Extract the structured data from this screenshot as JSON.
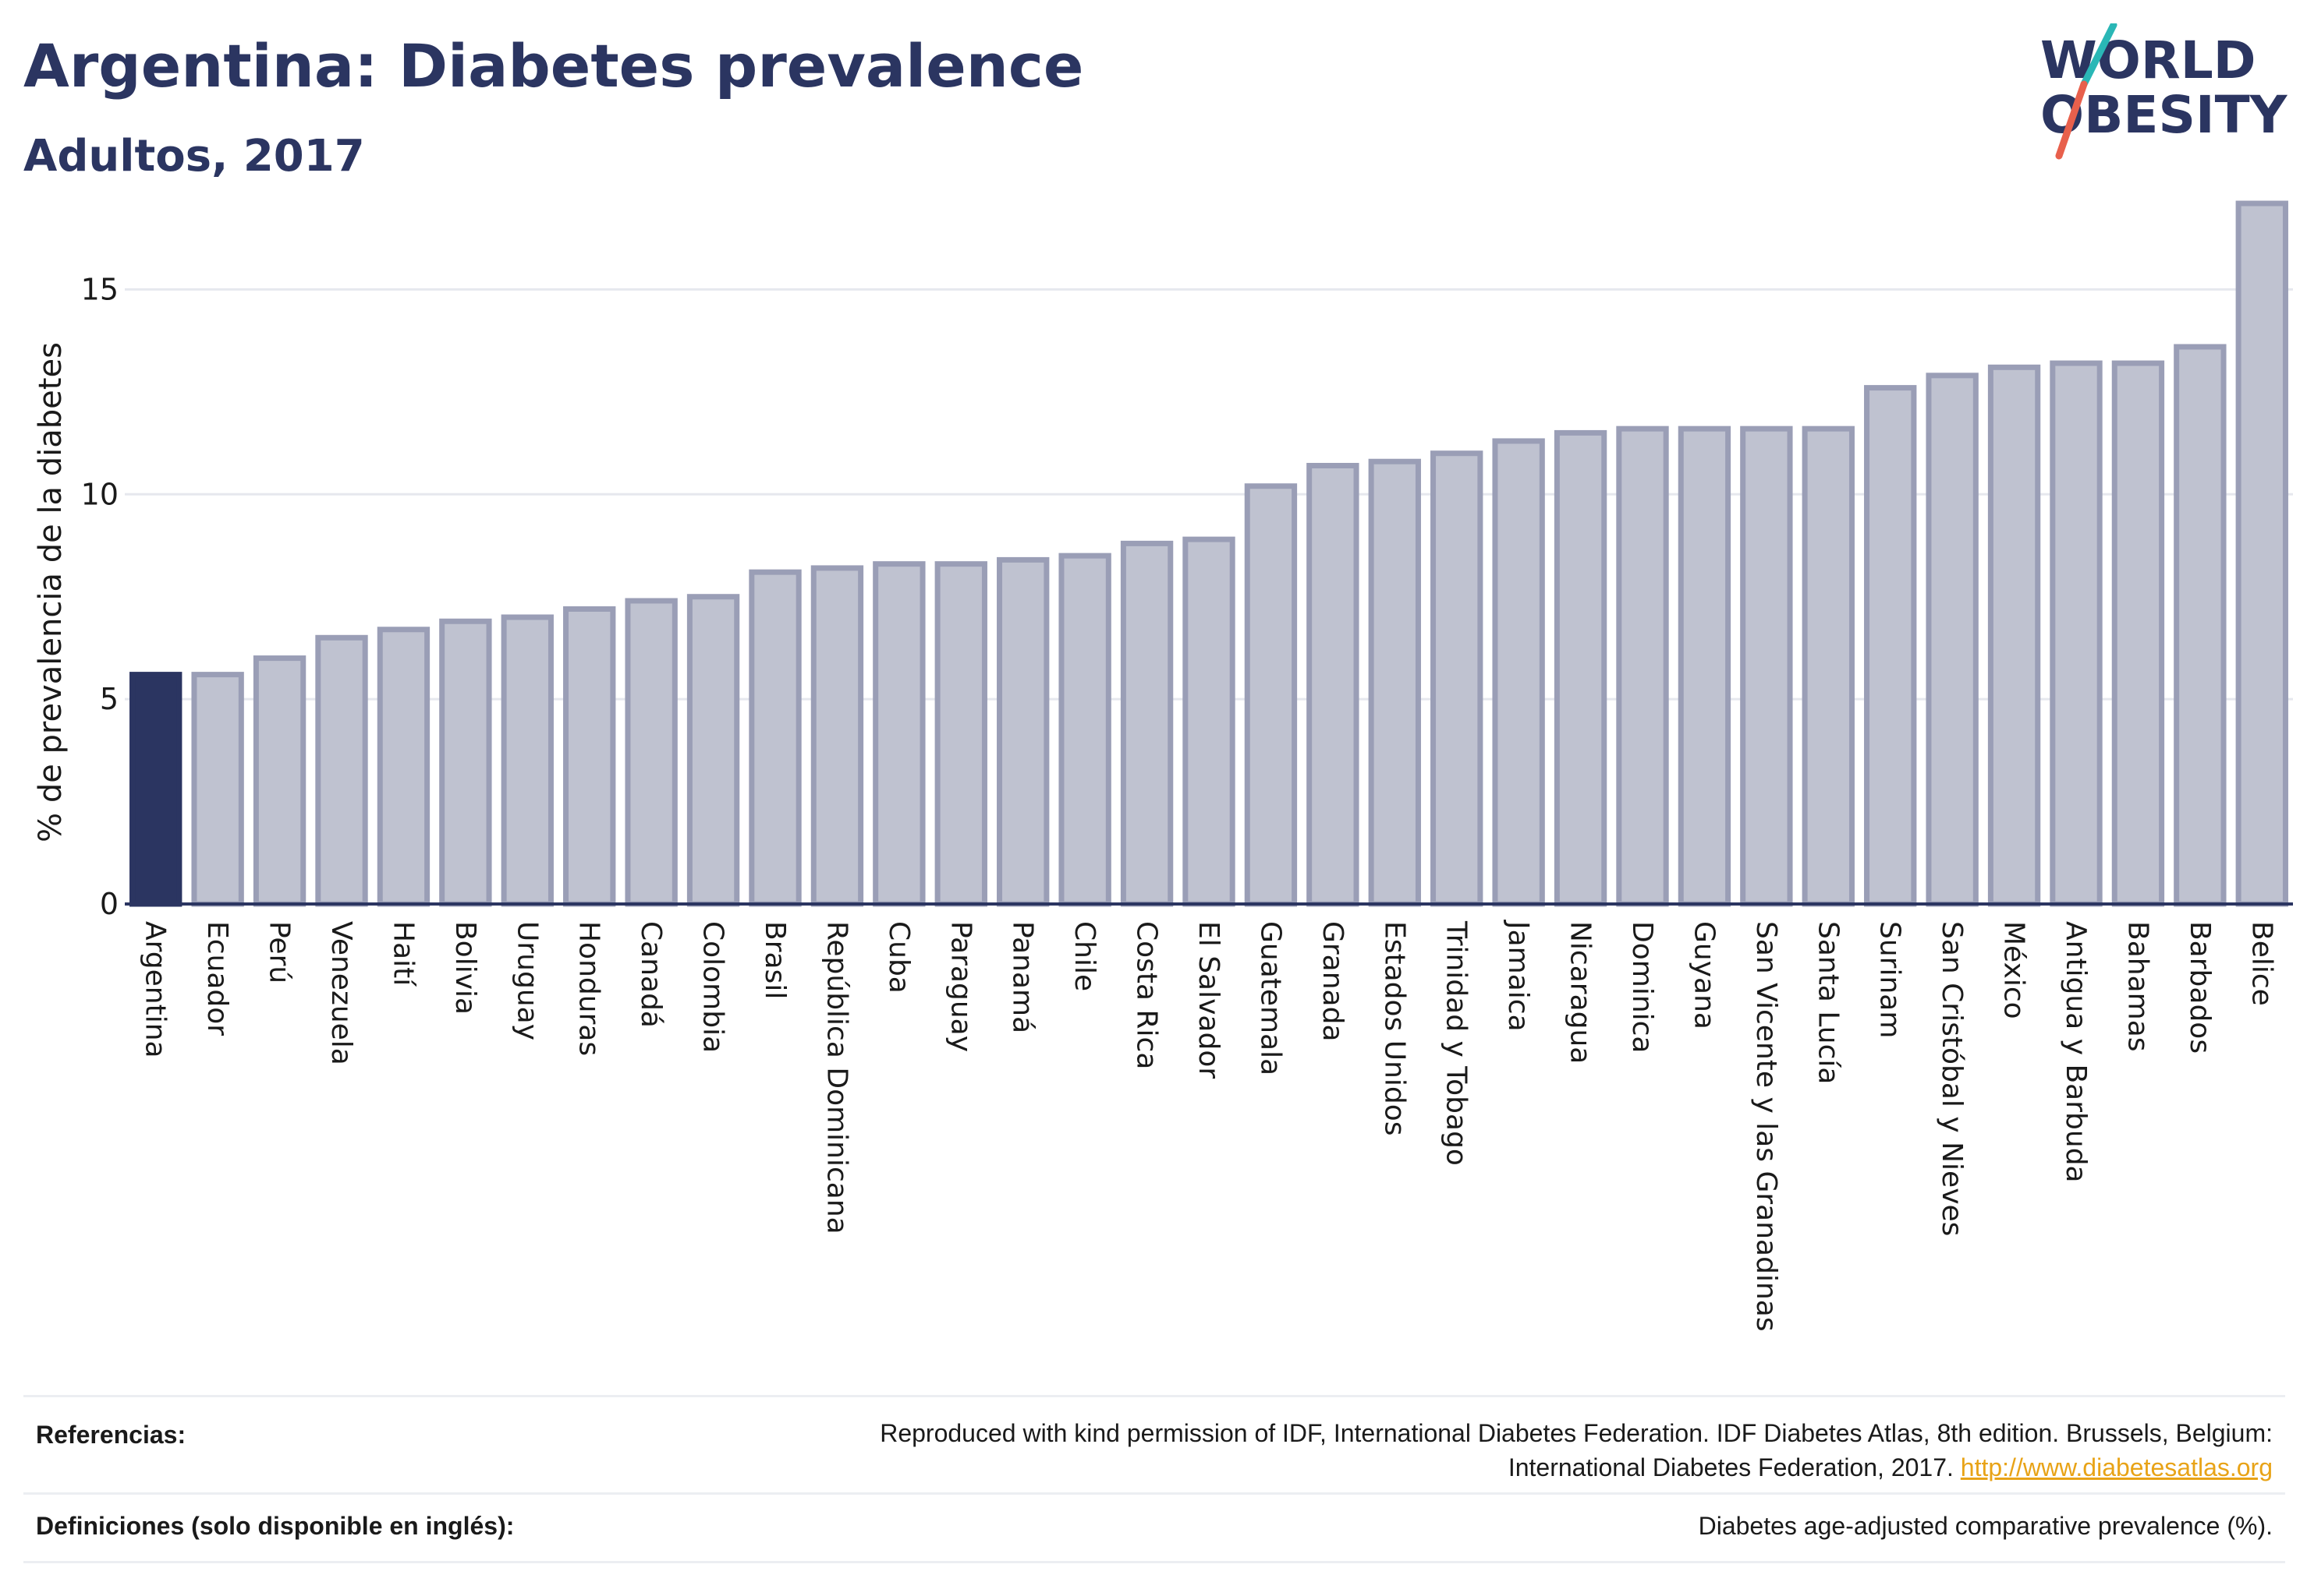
{
  "header": {
    "title": "Argentina: Diabetes prevalence",
    "subtitle": "Adultos, 2017"
  },
  "logo": {
    "line1": "WORLD",
    "line2": "OBESITY",
    "accent_colors": [
      "#2ab7b6",
      "#e8604c"
    ]
  },
  "colors": {
    "highlight_bar": "#2b3561",
    "bar_fill": "#bfc2d0",
    "bar_stroke": "#9a9eb6",
    "grid": "#e6e8ee",
    "axis": "#2b3561"
  },
  "chart_data": {
    "type": "bar",
    "title": "Argentina: Diabetes prevalence",
    "subtitle": "Adultos, 2017",
    "xlabel": "",
    "ylabel": "% de prevalencia de la diabetes",
    "ylim": [
      0,
      17.5
    ],
    "yticks": [
      0,
      5,
      10,
      15
    ],
    "grid": true,
    "highlight": "Argentina",
    "categories": [
      "Argentina",
      "Ecuador",
      "Perú",
      "Venezuela",
      "Haití",
      "Bolivia",
      "Uruguay",
      "Honduras",
      "Canadá",
      "Colombia",
      "Brasil",
      "República Dominicana",
      "Cuba",
      "Paraguay",
      "Panamá",
      "Chile",
      "Costa Rica",
      "El Salvador",
      "Guatemala",
      "Granada",
      "Estados Unidos",
      "Trinidad y Tobago",
      "Jamaica",
      "Nicaragua",
      "Dominica",
      "Guyana",
      "San Vicente y las Granadinas",
      "Santa Lucía",
      "Surinam",
      "San Cristóbal y Nieves",
      "México",
      "Antigua y Barbuda",
      "Bahamas",
      "Barbados",
      "Belice"
    ],
    "values": [
      5.6,
      5.6,
      6.0,
      6.5,
      6.7,
      6.9,
      7.0,
      7.2,
      7.4,
      7.5,
      8.1,
      8.2,
      8.3,
      8.3,
      8.4,
      8.5,
      8.8,
      8.9,
      10.2,
      10.7,
      10.8,
      11.0,
      11.3,
      11.5,
      11.6,
      11.6,
      11.6,
      11.6,
      12.6,
      12.9,
      13.1,
      13.2,
      13.2,
      13.6,
      17.1
    ]
  },
  "footer": {
    "references_label": "Referencias:",
    "references_line1": "Reproduced with kind permission of IDF, International Diabetes Federation. IDF Diabetes Atlas, 8th edition. Brussels, Belgium:",
    "references_line2": "International Diabetes Federation, 2017.",
    "references_link": "http://www.diabetesatlas.org",
    "definitions_label": "Definiciones (solo disponible en inglés):",
    "definitions_text": "Diabetes age-adjusted comparative prevalence (%)."
  }
}
